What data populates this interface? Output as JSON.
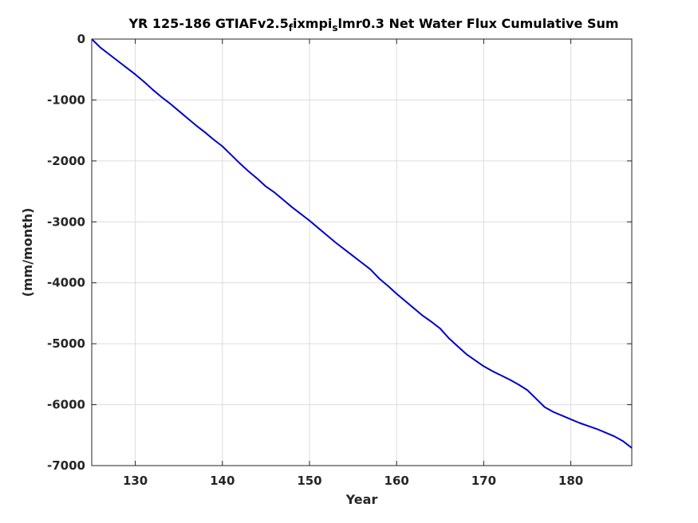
{
  "chart_data": {
    "type": "line",
    "title_parts": [
      {
        "text": "YR 125-186 GTIAFv2.5",
        "sub": false
      },
      {
        "text": "f",
        "sub": true
      },
      {
        "text": "ixmpi",
        "sub": false
      },
      {
        "text": "s",
        "sub": true
      },
      {
        "text": "lmr0.3 Net Water Flux Cumulative Sum",
        "sub": false
      }
    ],
    "xlabel": "Year",
    "ylabel": "(mm/month)",
    "xlim": [
      125,
      187
    ],
    "ylim": [
      -7000,
      0
    ],
    "xticks": [
      130,
      140,
      150,
      160,
      170,
      180
    ],
    "yticks": [
      0,
      -1000,
      -2000,
      -3000,
      -4000,
      -5000,
      -6000,
      -7000
    ],
    "grid": true,
    "series": [
      {
        "color": "#0000CC",
        "x": [
          125,
          126,
          127,
          128,
          129,
          130,
          131,
          132,
          133,
          134,
          135,
          136,
          137,
          138,
          139,
          140,
          141,
          142,
          143,
          144,
          145,
          146,
          147,
          148,
          149,
          150,
          151,
          152,
          153,
          154,
          155,
          156,
          157,
          158,
          159,
          160,
          161,
          162,
          163,
          164,
          165,
          166,
          167,
          168,
          169,
          170,
          171,
          172,
          173,
          174,
          175,
          176,
          177,
          178,
          179,
          180,
          181,
          182,
          183,
          184,
          185,
          186,
          187
        ],
        "y": [
          0,
          -140,
          -250,
          -360,
          -470,
          -580,
          -700,
          -830,
          -950,
          -1060,
          -1180,
          -1300,
          -1420,
          -1530,
          -1650,
          -1760,
          -1900,
          -2040,
          -2170,
          -2290,
          -2420,
          -2520,
          -2640,
          -2760,
          -2870,
          -2980,
          -3100,
          -3220,
          -3340,
          -3450,
          -3560,
          -3670,
          -3780,
          -3930,
          -4050,
          -4180,
          -4300,
          -4420,
          -4540,
          -4640,
          -4750,
          -4910,
          -5040,
          -5170,
          -5270,
          -5370,
          -5450,
          -5520,
          -5590,
          -5670,
          -5760,
          -5900,
          -6040,
          -6120,
          -6180,
          -6240,
          -6300,
          -6350,
          -6400,
          -6460,
          -6520,
          -6600,
          -6710
        ]
      }
    ]
  }
}
